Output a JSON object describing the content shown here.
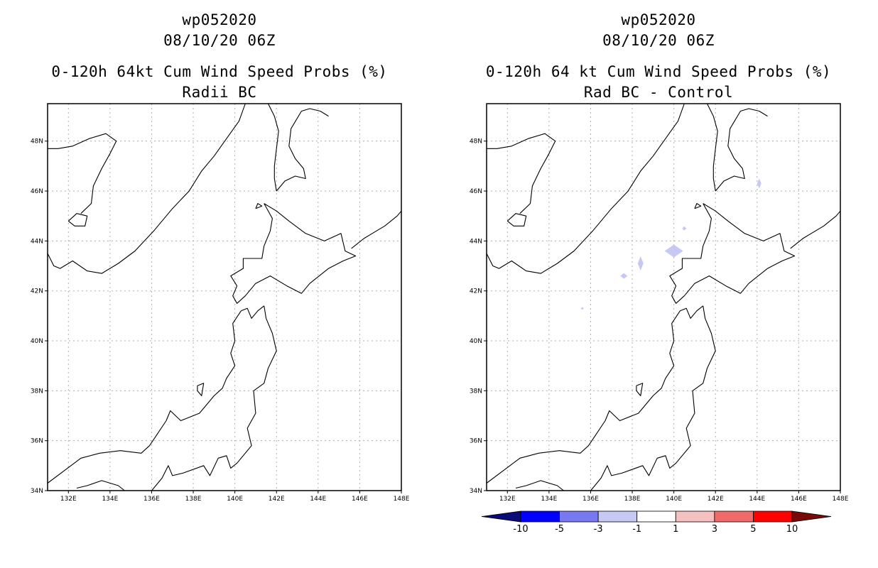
{
  "panels": [
    {
      "id": "left",
      "storm_id": "wp052020",
      "datetime": "08/10/20 06Z",
      "product": "0-120h 64kt Cum Wind Speed Probs (%)",
      "variant": "Radii BC"
    },
    {
      "id": "right",
      "storm_id": "wp052020",
      "datetime": "08/10/20 06Z",
      "product": "0-120h 64 kt Cum Wind Speed Probs (%)",
      "variant": "Rad BC - Control"
    }
  ],
  "map": {
    "lon_range": [
      131,
      148
    ],
    "lat_range": [
      34,
      49.5
    ],
    "lon_ticks": [
      "132E",
      "134E",
      "136E",
      "138E",
      "140E",
      "142E",
      "144E",
      "146E",
      "148E"
    ],
    "lat_ticks": [
      "34N",
      "36N",
      "38N",
      "40N",
      "42N",
      "44N",
      "46N",
      "48N"
    ],
    "grid": true,
    "coast_color": "#000000",
    "grid_color": "#b0b0b0"
  },
  "colorbar": {
    "labels": [
      "-10",
      "-5",
      "-3",
      "-1",
      "1",
      "3",
      "5",
      "10"
    ],
    "colors": [
      "#0a0a78",
      "#0000ff",
      "#7878f0",
      "#c8c8f5",
      "#ffffff",
      "#f5c0c0",
      "#f06a6a",
      "#ff0000",
      "#780a0a"
    ]
  },
  "difference_patches": [
    {
      "name": "patch-1",
      "lon": 140.0,
      "lat": 43.6,
      "value_range": "-3 to -1",
      "color": "#c8c8f5"
    },
    {
      "name": "patch-2",
      "lon": 138.4,
      "lat": 43.1,
      "value_range": "-3 to -1",
      "color": "#c8c8f5"
    },
    {
      "name": "patch-3",
      "lon": 137.6,
      "lat": 42.6,
      "value_range": "-3 to -1",
      "color": "#c8c8f5"
    },
    {
      "name": "patch-4",
      "lon": 140.5,
      "lat": 44.5,
      "value_range": "-3 to -1",
      "color": "#c8c8f5"
    },
    {
      "name": "patch-5",
      "lon": 144.1,
      "lat": 46.3,
      "value_range": "-3 to -1",
      "color": "#c8c8f5"
    },
    {
      "name": "patch-6",
      "lon": 135.6,
      "lat": 41.3,
      "value_range": "-3 to -1",
      "color": "#c8c8f5"
    }
  ]
}
